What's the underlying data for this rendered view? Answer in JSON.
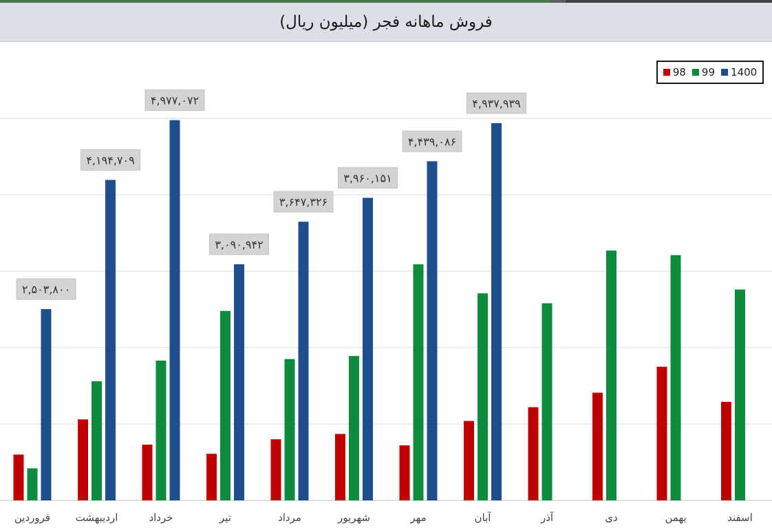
{
  "chart_data": {
    "type": "bar",
    "title": "فروش ماهانه فجر (میلیون ریال)",
    "xlabel": "",
    "ylabel": "",
    "ylim": [
      0,
      5000000
    ],
    "grid": true,
    "legend": "top-right",
    "categories": [
      "فروردین",
      "اردیبهشت",
      "خرداد",
      "تیر",
      "مرداد",
      "شهریور",
      "مهر",
      "آبان",
      "آذر",
      "دی",
      "بهمن",
      "اسفند"
    ],
    "series": [
      {
        "name": "98",
        "color": "#c00000",
        "values": [
          600000,
          1060000,
          730000,
          610000,
          800000,
          870000,
          720000,
          1040000,
          1220000,
          1410000,
          1750000,
          1290000
        ]
      },
      {
        "name": "99",
        "color": "#0e8c3d",
        "values": [
          420000,
          1560000,
          1830000,
          2480000,
          1850000,
          1890000,
          3090000,
          2710000,
          2580000,
          3270000,
          3210000,
          2760000
        ]
      },
      {
        "name": "1400",
        "color": "#1f4e8c",
        "values": [
          2503800,
          4194709,
          4977072,
          3090942,
          3647326,
          3960151,
          4439086,
          4937939,
          null,
          null,
          null,
          null
        ]
      }
    ],
    "data_labels": [
      "۲,۵۰۳,۸۰۰",
      "۴,۱۹۴,۷۰۹",
      "۴,۹۷۷,۰۷۲",
      "۳,۰۹۰,۹۴۲",
      "۳,۶۴۷,۳۲۶",
      "۳,۹۶۰,۱۵۱",
      "۴,۴۳۹,۰۸۶",
      "۴,۹۳۷,۹۳۹",
      "",
      "",
      "",
      ""
    ]
  }
}
